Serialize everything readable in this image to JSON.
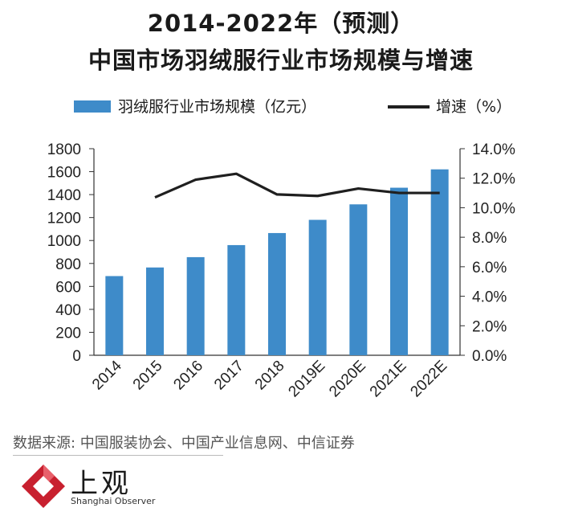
{
  "header": {
    "title_line1": "2014-2022年（预测）",
    "title_line2": "中国市场羽绒服行业市场规模与增速"
  },
  "legend": {
    "bar_label": "羽绒服行业市场规模（亿元）",
    "line_label": "增速（%）"
  },
  "chart_data": {
    "type": "bar+line",
    "categories": [
      "2014",
      "2015",
      "2016",
      "2017",
      "2018",
      "2019E",
      "2020E",
      "2021E",
      "2022E"
    ],
    "series": [
      {
        "name": "羽绒服行业市场规模（亿元）",
        "type": "bar",
        "axis": "left",
        "values": [
          690,
          765,
          855,
          960,
          1065,
          1180,
          1315,
          1460,
          1620
        ]
      },
      {
        "name": "增速（%）",
        "type": "line",
        "axis": "right",
        "values": [
          null,
          10.7,
          11.9,
          12.3,
          10.9,
          10.8,
          11.3,
          11.0,
          11.0
        ]
      }
    ],
    "y_left": {
      "min": 0,
      "max": 1800,
      "step": 200,
      "ticks": [
        "0",
        "200",
        "400",
        "600",
        "800",
        "1000",
        "1200",
        "1400",
        "1600",
        "1800"
      ]
    },
    "y_right": {
      "min": 0,
      "max": 14,
      "step": 2,
      "ticks": [
        "0.0%",
        "2.0%",
        "4.0%",
        "6.0%",
        "8.0%",
        "10.0%",
        "12.0%",
        "14.0%"
      ]
    },
    "colors": {
      "bar": "#3e8bc9",
      "line": "#1f1f1f",
      "axis": "#333333"
    }
  },
  "footer": {
    "source": "数据来源: 中国服装协会、中国产业信息网、中信证券",
    "brand": "上观",
    "brand_en": "Shanghai Observer"
  },
  "logo": {
    "icon": "shanghai-observer-logo-icon",
    "color": "#c8202f"
  }
}
